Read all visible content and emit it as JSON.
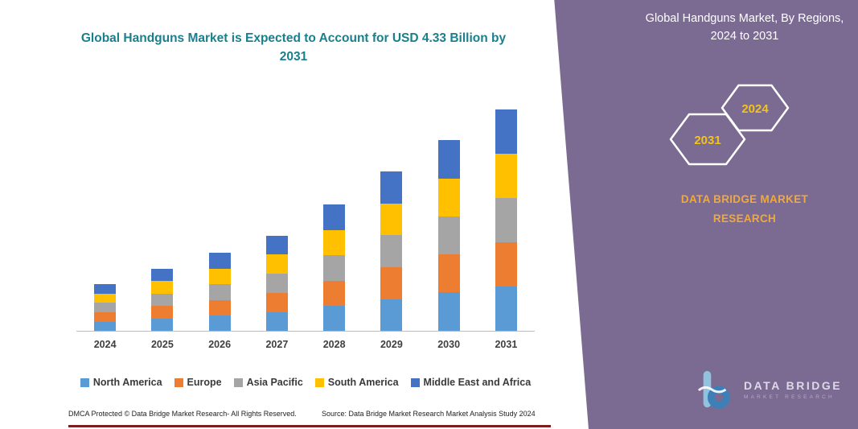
{
  "left": {
    "footer_left": "DMCA Protected © Data Bridge Market Research-  All Rights Reserved.",
    "footer_right": "Source: Data Bridge Market Research  Market Analysis Study 2024"
  },
  "right": {
    "heading": "Global Handguns Market, By Regions, 2024 to 2031",
    "badge_back": "2031",
    "badge_front": "2024",
    "brand": "DATA BRIDGE MARKET RESEARCH",
    "logo_title": "DATA BRIDGE",
    "logo_subtitle": "MARKET RESEARCH",
    "panel_color": "#7b6a92",
    "badge_text_color": "#f2c31b",
    "brand_color": "#f0a93c"
  },
  "chart_data": {
    "type": "bar",
    "stacked": true,
    "title": "Global Handguns Market is Expected to Account for USD 4.33 Billion by 2031",
    "title_color": "#1a7f8c",
    "categories": [
      "2024",
      "2025",
      "2026",
      "2027",
      "2028",
      "2029",
      "2030",
      "2031"
    ],
    "series": [
      {
        "name": "North America",
        "color": "#5B9BD5",
        "values": [
          0.18,
          0.24,
          0.3,
          0.37,
          0.49,
          0.62,
          0.75,
          0.87
        ]
      },
      {
        "name": "Europe",
        "color": "#ED7D31",
        "values": [
          0.18,
          0.24,
          0.3,
          0.37,
          0.49,
          0.62,
          0.74,
          0.86
        ]
      },
      {
        "name": "Asia Pacific",
        "color": "#A5A5A5",
        "values": [
          0.19,
          0.25,
          0.31,
          0.38,
          0.5,
          0.63,
          0.75,
          0.87
        ]
      },
      {
        "name": "South America",
        "color": "#FFC000",
        "values": [
          0.18,
          0.24,
          0.3,
          0.37,
          0.49,
          0.62,
          0.74,
          0.86
        ]
      },
      {
        "name": "Middle East and Africa",
        "color": "#4472C4",
        "values": [
          0.19,
          0.24,
          0.31,
          0.37,
          0.5,
          0.63,
          0.75,
          0.87
        ]
      }
    ],
    "totals": [
      0.92,
      1.21,
      1.52,
      1.86,
      2.47,
      3.12,
      3.73,
      4.33
    ],
    "xlabel": "",
    "ylabel": "",
    "ylim": [
      0,
      4.5
    ],
    "grid": false,
    "legend_position": "bottom"
  }
}
